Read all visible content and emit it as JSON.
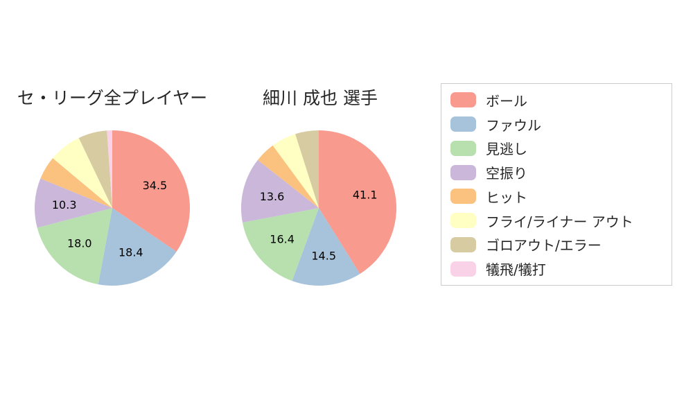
{
  "figure": {
    "background": "#ffffff"
  },
  "legend": {
    "position": "right",
    "border_color": "#cccccc",
    "items": [
      {
        "label": "ボール",
        "color": "#f89a8e"
      },
      {
        "label": "ファウル",
        "color": "#a6c3db"
      },
      {
        "label": "見逃し",
        "color": "#b7e0ae"
      },
      {
        "label": "空振り",
        "color": "#cab7da"
      },
      {
        "label": "ヒット",
        "color": "#fac17f"
      },
      {
        "label": "フライ/ライナー アウト",
        "color": "#ffffc4"
      },
      {
        "label": "ゴロアウト/エラー",
        "color": "#d7cba2"
      },
      {
        "label": "犠飛/犠打",
        "color": "#fad2e8"
      }
    ]
  },
  "chart_data": [
    {
      "type": "pie",
      "title": "セ・リーグ全プレイヤー",
      "categories": [
        "ボール",
        "ファウル",
        "見逃し",
        "空振り",
        "ヒット",
        "フライ/ライナー アウト",
        "ゴロアウト/エラー",
        "犠飛/犠打"
      ],
      "values": [
        34.5,
        18.4,
        18.0,
        10.3,
        4.9,
        6.8,
        6.0,
        1.1
      ],
      "shown_value_labels": [
        "34.5",
        "18.4",
        "18.0",
        "10.3"
      ],
      "start_angle": 90,
      "direction": "clockwise",
      "label_threshold": 10
    },
    {
      "type": "pie",
      "title": "細川 成也  選手",
      "categories": [
        "ボール",
        "ファウル",
        "見逃し",
        "空振り",
        "ヒット",
        "フライ/ライナー アウト",
        "ゴロアウト/エラー",
        "犠飛/犠打"
      ],
      "values": [
        41.1,
        14.5,
        16.4,
        13.6,
        4.3,
        5.2,
        4.9,
        0.0
      ],
      "shown_value_labels": [
        "41.1",
        "14.5",
        "16.4",
        "13.6"
      ],
      "start_angle": 90,
      "direction": "clockwise",
      "label_threshold": 10
    }
  ]
}
